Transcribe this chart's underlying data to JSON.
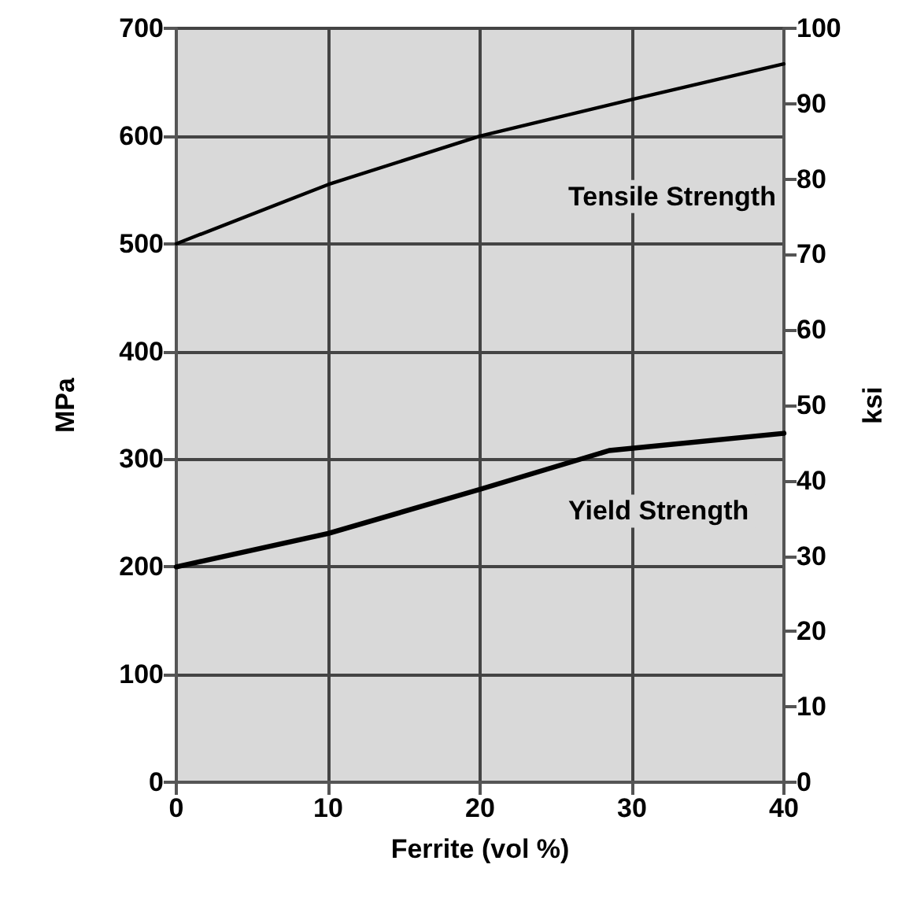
{
  "chart_data": {
    "type": "line",
    "xlabel": "Ferrite (vol %)",
    "ylabel": "MPa",
    "y2label": "ksi",
    "x": [
      0,
      10,
      20,
      28.5,
      30,
      40
    ],
    "series": [
      {
        "name": "Tensile Strength",
        "color": "#000000",
        "values": [
          500,
          555,
          600,
          null,
          634,
          667
        ]
      },
      {
        "name": "Yield Strength",
        "color": "#000000",
        "values": [
          200,
          231,
          272,
          308,
          null,
          324
        ]
      }
    ],
    "xlim": [
      0,
      40
    ],
    "xticks": [
      0,
      10,
      20,
      30,
      40
    ],
    "ylim": [
      0,
      700
    ],
    "yticks": [
      0,
      100,
      200,
      300,
      400,
      500,
      600,
      700
    ],
    "y2lim": [
      0,
      100
    ],
    "y2ticks": [
      0,
      10,
      20,
      30,
      40,
      50,
      60,
      70,
      80,
      90,
      100
    ],
    "grid": true,
    "legend": false,
    "marker": "none",
    "line_style": "solid"
  }
}
